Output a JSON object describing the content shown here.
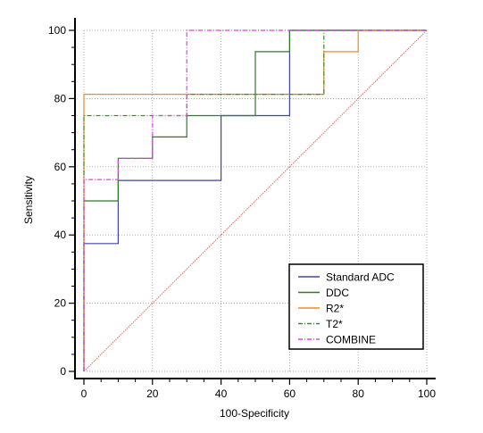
{
  "chart_data": {
    "type": "line",
    "title": "",
    "xlabel": "100-Specificity",
    "ylabel": "Sensitivity",
    "xlim": [
      0,
      100
    ],
    "ylim": [
      0,
      100
    ],
    "xticks": [
      "0",
      "20",
      "40",
      "60",
      "80",
      "100"
    ],
    "yticks": [
      "0",
      "20",
      "40",
      "60",
      "80",
      "100"
    ],
    "grid": true,
    "legend_position": "bottom-right",
    "reference_line": {
      "x": [
        0,
        100
      ],
      "y": [
        0,
        100
      ],
      "color": "#e06a5a"
    },
    "series": [
      {
        "name": "Standard ADC",
        "color": "#4040b0",
        "dash": "",
        "x": [
          0,
          0,
          10,
          10,
          40,
          40,
          60,
          60,
          100
        ],
        "y": [
          0,
          37.5,
          37.5,
          56,
          56,
          75,
          75,
          100,
          100
        ]
      },
      {
        "name": "DDC",
        "color": "#2f7a2f",
        "dash": "",
        "x": [
          0,
          0,
          10,
          10,
          20,
          20,
          30,
          30,
          50,
          50,
          60,
          60,
          100
        ],
        "y": [
          0,
          50,
          50,
          62.5,
          62.5,
          68.75,
          68.75,
          75,
          75,
          93.75,
          93.75,
          100,
          100
        ]
      },
      {
        "name": "R2*",
        "color": "#f08a28",
        "dash": "",
        "x": [
          0,
          0,
          70,
          70,
          80,
          80,
          100
        ],
        "y": [
          0,
          81.25,
          81.25,
          93.75,
          93.75,
          100,
          100
        ]
      },
      {
        "name": "T2*",
        "color": "#3a8a3a",
        "dash": "5,2,1,2",
        "x": [
          0,
          0,
          30,
          30,
          70,
          70,
          100
        ],
        "y": [
          0,
          75,
          75,
          81.25,
          81.25,
          100,
          100
        ]
      },
      {
        "name": "COMBINE",
        "color": "#e040e0",
        "dash": "5,2,1,2",
        "x": [
          0,
          0,
          10,
          10,
          20,
          20,
          30,
          30,
          100
        ],
        "y": [
          0,
          56.25,
          56.25,
          62.5,
          62.5,
          75,
          75,
          100,
          100
        ]
      }
    ]
  }
}
